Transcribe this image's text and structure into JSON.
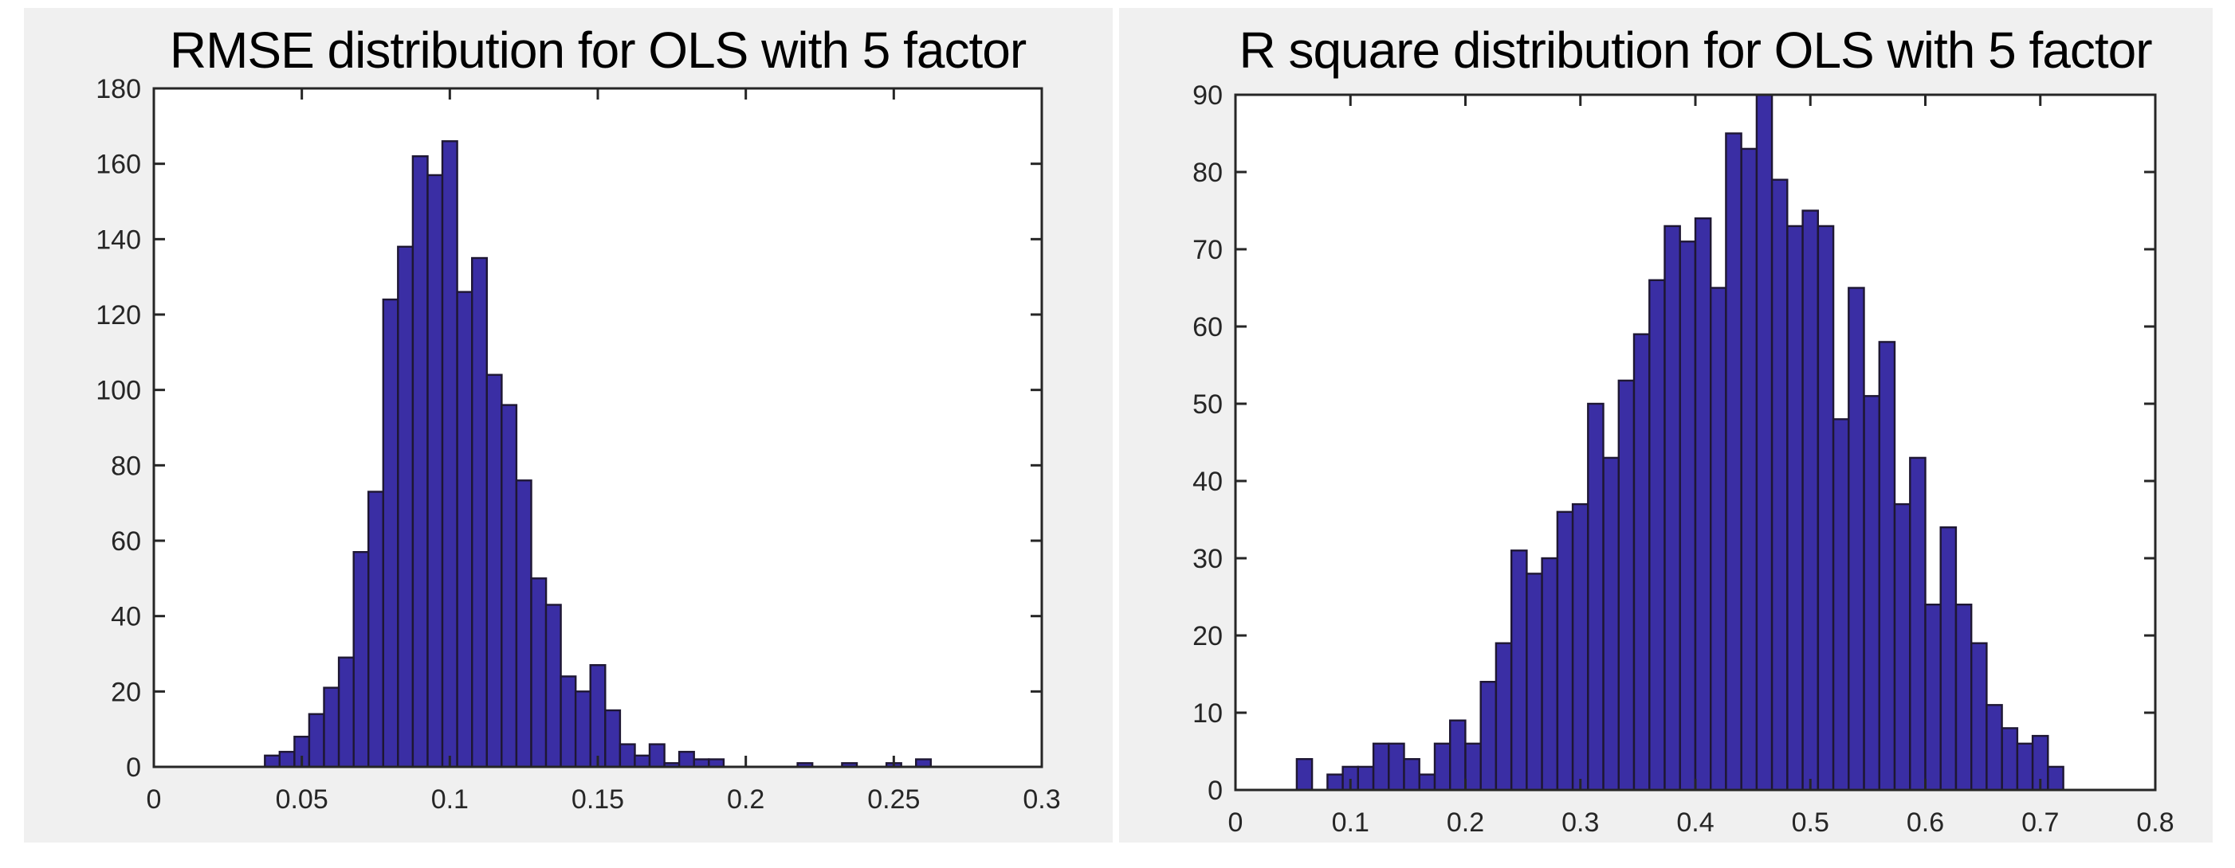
{
  "page": {
    "background": "#ffffff",
    "panel_background": "#f0f0f0",
    "plot_background": "#ffffff"
  },
  "style": {
    "bar_fill": "#3a2ea4",
    "bar_edge": "#1e1733",
    "axis_color": "#262626",
    "tick_label_color": "#262626",
    "title_color": "#000000"
  },
  "chart_data": [
    {
      "type": "bar",
      "variant": "histogram",
      "title": "RMSE distribution for OLS with 5 factor",
      "xlabel": "",
      "ylabel": "",
      "xlim": [
        0,
        0.3
      ],
      "ylim": [
        0,
        180
      ],
      "xticks": [
        0,
        0.05,
        0.1,
        0.15,
        0.2,
        0.25,
        0.3
      ],
      "xtick_labels": [
        "0",
        "0.05",
        "0.1",
        "0.15",
        "0.2",
        "0.25",
        "0.3"
      ],
      "yticks": [
        0,
        20,
        40,
        60,
        80,
        100,
        120,
        140,
        160,
        180
      ],
      "ytick_labels": [
        "0",
        "20",
        "40",
        "60",
        "80",
        "100",
        "120",
        "140",
        "160",
        "180"
      ],
      "grid": false,
      "legend": null,
      "bin_start": 0.0375,
      "bin_width": 0.005,
      "counts": [
        3,
        4,
        8,
        14,
        21,
        29,
        57,
        73,
        124,
        138,
        162,
        157,
        166,
        126,
        135,
        104,
        96,
        76,
        50,
        43,
        24,
        20,
        27,
        15,
        6,
        3,
        6,
        1,
        4,
        2,
        2,
        0,
        0,
        0,
        0,
        0,
        1,
        0,
        0,
        1,
        0,
        0,
        1,
        0,
        2
      ]
    },
    {
      "type": "bar",
      "variant": "histogram",
      "title": "R square distribution for OLS with 5 factor",
      "xlabel": "",
      "ylabel": "",
      "xlim": [
        0,
        0.8
      ],
      "ylim": [
        0,
        90
      ],
      "xticks": [
        0,
        0.1,
        0.2,
        0.3,
        0.4,
        0.5,
        0.6,
        0.7,
        0.8
      ],
      "xtick_labels": [
        "0",
        "0.1",
        "0.2",
        "0.3",
        "0.4",
        "0.5",
        "0.6",
        "0.7",
        "0.8"
      ],
      "yticks": [
        0,
        10,
        20,
        30,
        40,
        50,
        60,
        70,
        80,
        90
      ],
      "ytick_labels": [
        "0",
        "10",
        "20",
        "30",
        "40",
        "50",
        "60",
        "70",
        "80",
        "90"
      ],
      "grid": false,
      "legend": null,
      "bin_start": 0.0533,
      "bin_width": 0.013334,
      "counts": [
        4,
        0,
        2,
        3,
        3,
        6,
        6,
        4,
        2,
        6,
        9,
        6,
        14,
        19,
        31,
        28,
        30,
        36,
        37,
        50,
        43,
        53,
        59,
        66,
        73,
        71,
        74,
        65,
        85,
        83,
        90,
        79,
        73,
        75,
        73,
        48,
        65,
        51,
        58,
        37,
        43,
        24,
        34,
        24,
        19,
        11,
        8,
        6,
        7,
        3
      ]
    }
  ]
}
